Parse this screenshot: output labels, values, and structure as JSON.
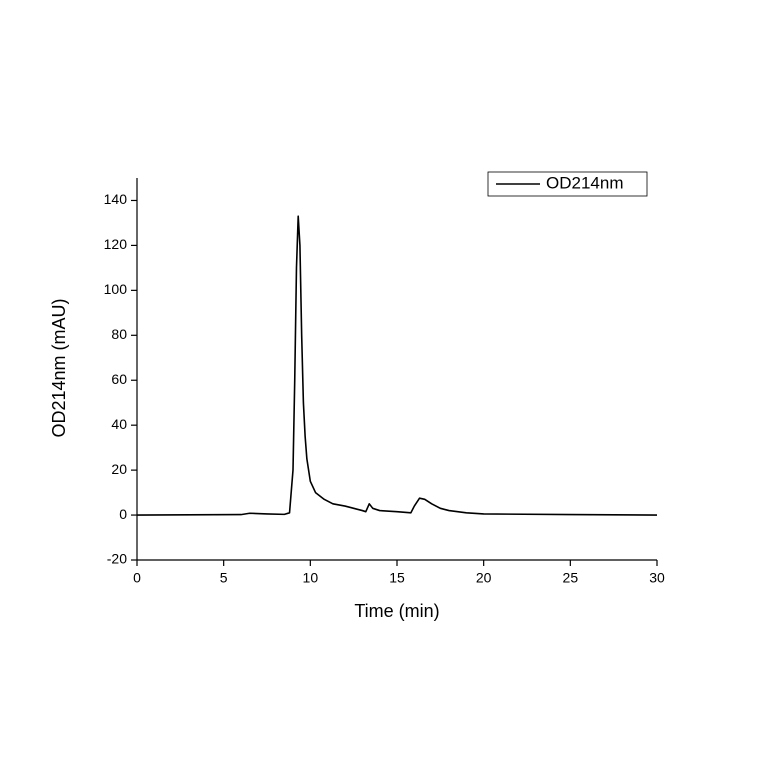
{
  "chart_data": {
    "type": "line",
    "x_label": "Time (min)",
    "y_label": "OD214nm (mAU)",
    "x": [
      0,
      6,
      6.5,
      7.5,
      8.5,
      8.8,
      9.0,
      9.1,
      9.2,
      9.3,
      9.4,
      9.5,
      9.6,
      9.7,
      9.8,
      10.0,
      10.3,
      10.8,
      11.3,
      12,
      12.5,
      13.0,
      13.2,
      13.4,
      13.6,
      14,
      15,
      15.8,
      16.0,
      16.3,
      16.6,
      17,
      17.5,
      18,
      19,
      20,
      25,
      30
    ],
    "series": [
      {
        "name": "OD214nm",
        "color": "#000000",
        "values": [
          0,
          0.2,
          0.8,
          0.5,
          0.3,
          1,
          20,
          60,
          110,
          133,
          120,
          80,
          50,
          35,
          25,
          15,
          10,
          7,
          5,
          4,
          3,
          2,
          1.5,
          5,
          3,
          2,
          1.5,
          1,
          4,
          7.5,
          7,
          5,
          3,
          2,
          1,
          0.5,
          0.2,
          0
        ]
      }
    ],
    "xlim": [
      0,
      30
    ],
    "xticks": [
      0,
      5,
      10,
      15,
      20,
      25,
      30
    ],
    "ylim": [
      -20,
      150
    ],
    "yticks": [
      -20,
      0,
      20,
      40,
      60,
      80,
      100,
      120,
      140
    ],
    "legend": "upper right"
  }
}
